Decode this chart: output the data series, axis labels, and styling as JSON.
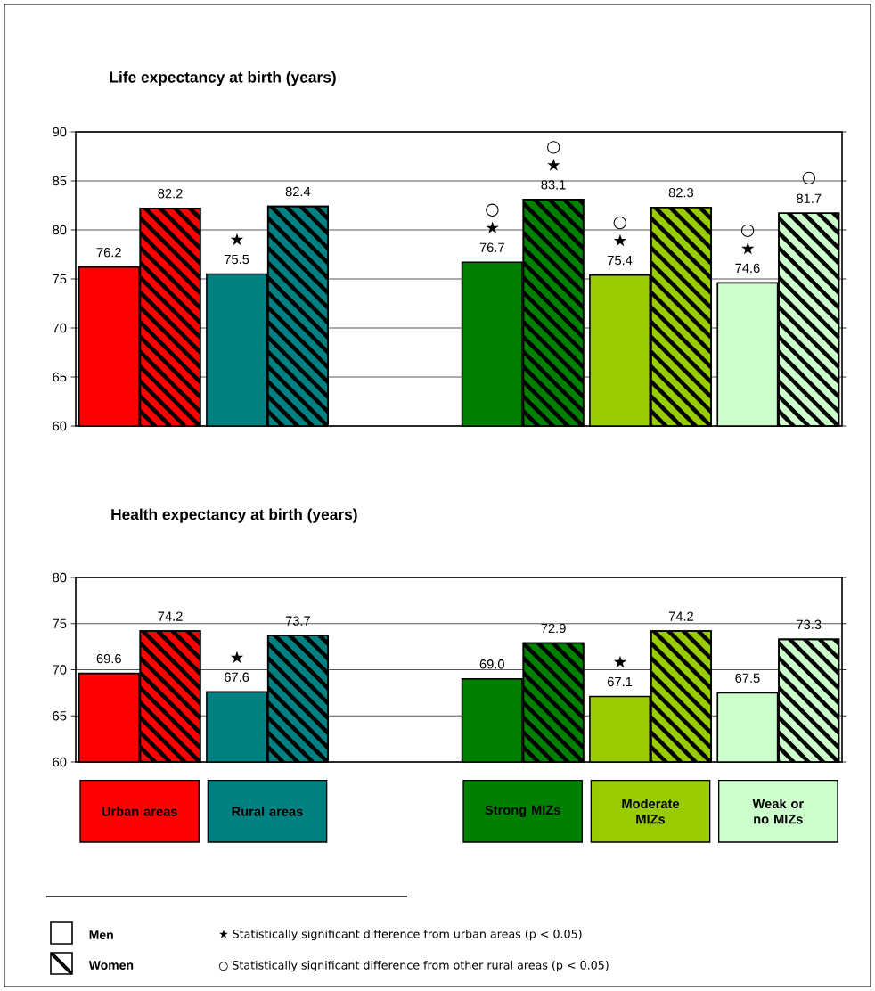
{
  "chart_data": [
    {
      "type": "bar",
      "title": "Life expectancy at birth (years)",
      "categories": [
        "Urban areas",
        "Rural areas",
        null,
        "Strong MIZs",
        "Moderate MIZs",
        "Weak or no MIZs"
      ],
      "series": [
        {
          "colors": [
            "#ff0000",
            "#008080",
            null,
            "#008000",
            "#99cc00",
            "#ccffcc"
          ],
          "values": [
            76.2,
            75.5,
            null,
            76.7,
            75.4,
            74.6
          ],
          "value_labels": [
            "76.2",
            "75.5",
            null,
            "76.7",
            "75.4",
            "74.6"
          ]
        },
        {
          "colors": [
            "#ff0000",
            "#008080",
            null,
            "#008000",
            "#99cc00",
            "#ccffcc"
          ],
          "values": [
            82.2,
            82.4,
            null,
            83.1,
            82.3,
            81.7
          ],
          "value_labels": [
            "82.2",
            "82.4",
            null,
            "83.1",
            "82.3",
            "81.7"
          ]
        }
      ],
      "ylim": [
        60,
        90
      ],
      "yticks": [
        60,
        65,
        70,
        75,
        80,
        85,
        90
      ],
      "grid": "y",
      "tick_labels": "y",
      "annotations": [
        {
          "text": "★",
          "x": "Rural areas",
          "y": 75.5
        },
        {
          "text": "○ ★",
          "x": "Strong MIZs",
          "y": 76.7
        },
        {
          "text": "○ ★",
          "x": "Strong MIZs",
          "y": 83.1
        },
        {
          "text": "○ ★",
          "x": "Moderate MIZs",
          "y": 75.4
        },
        {
          "text": "○ ★",
          "x": "Weak or no MIZs",
          "y": 74.6
        },
        {
          "text": "○",
          "x": "Weak or no MIZs",
          "y": 81.7
        }
      ]
    },
    {
      "type": "bar",
      "title": "Health expectancy at birth (years)",
      "categories": [
        "Urban areas",
        "Rural areas",
        null,
        "Strong MIZs",
        "Moderate MIZs",
        "Weak or no MIZs"
      ],
      "series": [
        {
          "name": "Men",
          "color": "#ffffff",
          "colors": [
            "#ff0000",
            "#008080",
            null,
            "#008000",
            "#99cc00",
            "#ccffcc"
          ],
          "values": [
            69.6,
            67.6,
            null,
            69.0,
            67.1,
            67.5
          ],
          "value_labels": [
            "69.6",
            "67.6",
            null,
            "69.0",
            "67.1",
            "67.5"
          ]
        },
        {
          "name": "Women",
          "color": "#ffffff",
          "colors": [
            "#ff0000",
            "#008080",
            null,
            "#008000",
            "#99cc00",
            "#ccffcc"
          ],
          "values": [
            74.2,
            73.7,
            null,
            72.9,
            74.2,
            73.3
          ],
          "value_labels": [
            "74.2",
            "73.7",
            null,
            "72.9",
            "74.2",
            "73.3"
          ]
        }
      ],
      "ylim": [
        60,
        80
      ],
      "yticks": [
        60,
        65,
        70,
        75,
        80
      ],
      "grid": "y",
      "legend": "bottom left",
      "annotations": [
        {
          "text": "★",
          "x": "Rural areas",
          "y": 67.6
        },
        {
          "text": "★",
          "x": "Moderate MIZs",
          "y": 67.1
        },
        "★ Statistically significant difference from urban areas (p < 0.05)",
        "○ Statistically significant difference from other rural areas (p < 0.05)"
      ]
    }
  ]
}
